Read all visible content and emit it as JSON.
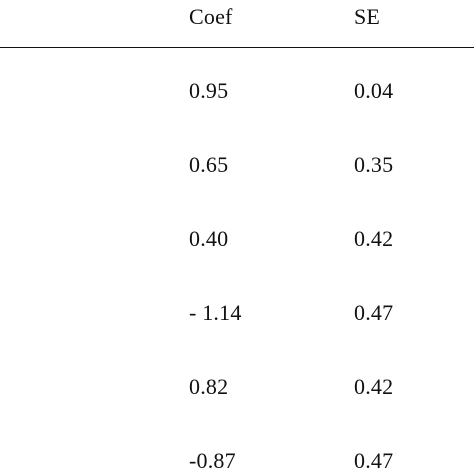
{
  "table": {
    "headers": [
      "Coef",
      "SE"
    ],
    "rows": [
      {
        "coef": "0.95",
        "se": "0.04"
      },
      {
        "coef": "0.65",
        "se": "0.35"
      },
      {
        "coef": "0.40",
        "se": "0.42"
      },
      {
        "coef": "- 1.14",
        "se": "0.47"
      },
      {
        "coef": "0.82",
        "se": "0.42"
      },
      {
        "coef": "-0.87",
        "se": "0.47"
      }
    ]
  }
}
